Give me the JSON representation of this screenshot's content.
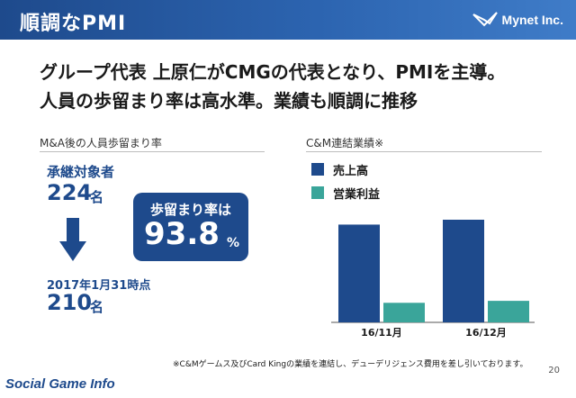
{
  "header": {
    "title": "順調なPMI",
    "logo_text": "Mynet Inc."
  },
  "headline": {
    "line1": "グループ代表 上原仁がCMGの代表となり、PMIを主導。",
    "line2": "人員の歩留まり率は高水準。業績も順調に推移"
  },
  "left_section": {
    "label": "M&A後の人員歩留まり率",
    "inherited_label": "承継対象者",
    "inherited_count": "224",
    "inherited_unit": "名",
    "date_label": "2017年1月31時点",
    "current_count": "210",
    "current_unit": "名",
    "badge_label": "歩留まり率は",
    "badge_value": "93.8",
    "badge_unit": "%"
  },
  "right_section": {
    "label": "C&M連結業績※"
  },
  "colors": {
    "revenue": "#1e4a8c",
    "operating_profit": "#3aa59a",
    "brand": "#1e4a8c"
  },
  "chart_data": {
    "type": "bar",
    "categories": [
      "16/11月",
      "16/12月"
    ],
    "series": [
      {
        "name": "売上高",
        "values": [
          100,
          105
        ]
      },
      {
        "name": "営業利益",
        "values": [
          20,
          22
        ]
      }
    ],
    "title": "",
    "xlabel": "",
    "ylabel": "",
    "ylim": [
      0,
      140
    ],
    "legend": "top-left",
    "grid": false
  },
  "footnote": "※C&Mゲームス及びCard Kingの業績を連結し、デューデリジェンス費用を差し引いております。",
  "footer": {
    "brand": "Social Game Info"
  },
  "page_number": "20"
}
